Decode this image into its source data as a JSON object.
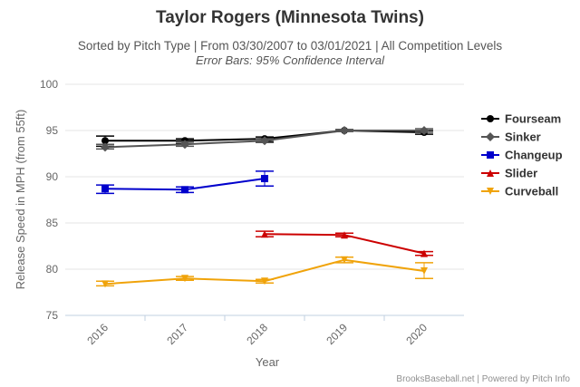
{
  "chart_data": {
    "type": "line",
    "title": "Taylor Rogers (Minnesota Twins)",
    "subtitle": "Sorted by Pitch Type | From 03/30/2007 to 03/01/2021 | All Competition Levels",
    "subtitle2": "Error Bars: 95% Confidence Interval",
    "xlabel": "Year",
    "ylabel": "Release Speed in MPH (from 55ft)",
    "categories": [
      "2016",
      "2017",
      "2018",
      "2019",
      "2020"
    ],
    "ylim": [
      75,
      100
    ],
    "yticks": [
      75,
      80,
      85,
      90,
      95,
      100
    ],
    "grid": true,
    "legend_position": "right",
    "credits": "BrooksBaseball.net | Powered by Pitch Info",
    "series": [
      {
        "name": "Fourseam",
        "color": "#000000",
        "marker": "circle",
        "values": [
          93.9,
          93.9,
          94.1,
          95.0,
          94.8
        ],
        "error_low": [
          93.3,
          93.6,
          93.8,
          94.9,
          94.6
        ],
        "error_high": [
          94.4,
          94.1,
          94.3,
          95.1,
          95.0
        ]
      },
      {
        "name": "Sinker",
        "color": "#555555",
        "marker": "diamond",
        "values": [
          93.2,
          93.5,
          93.9,
          95.0,
          95.0
        ],
        "error_low": [
          93.0,
          93.3,
          93.7,
          94.9,
          94.8
        ],
        "error_high": [
          93.5,
          93.8,
          94.1,
          95.1,
          95.2
        ]
      },
      {
        "name": "Changeup",
        "color": "#0000cc",
        "marker": "square",
        "values": [
          88.7,
          88.6,
          89.8,
          null,
          null
        ],
        "error_low": [
          88.2,
          88.3,
          89.0,
          null,
          null
        ],
        "error_high": [
          89.1,
          88.9,
          90.6,
          null,
          null
        ]
      },
      {
        "name": "Slider",
        "color": "#cc0000",
        "marker": "triangle",
        "values": [
          null,
          null,
          83.8,
          83.7,
          81.7
        ],
        "error_low": [
          null,
          null,
          83.5,
          83.5,
          81.5
        ],
        "error_high": [
          null,
          null,
          84.1,
          83.9,
          81.9
        ]
      },
      {
        "name": "Curveball",
        "color": "#f0a30a",
        "marker": "triangle-down",
        "values": [
          78.4,
          79.0,
          78.7,
          81.0,
          79.8
        ],
        "error_low": [
          78.2,
          78.8,
          78.5,
          80.7,
          79.0
        ],
        "error_high": [
          78.7,
          79.2,
          78.9,
          81.3,
          80.7
        ]
      }
    ]
  }
}
